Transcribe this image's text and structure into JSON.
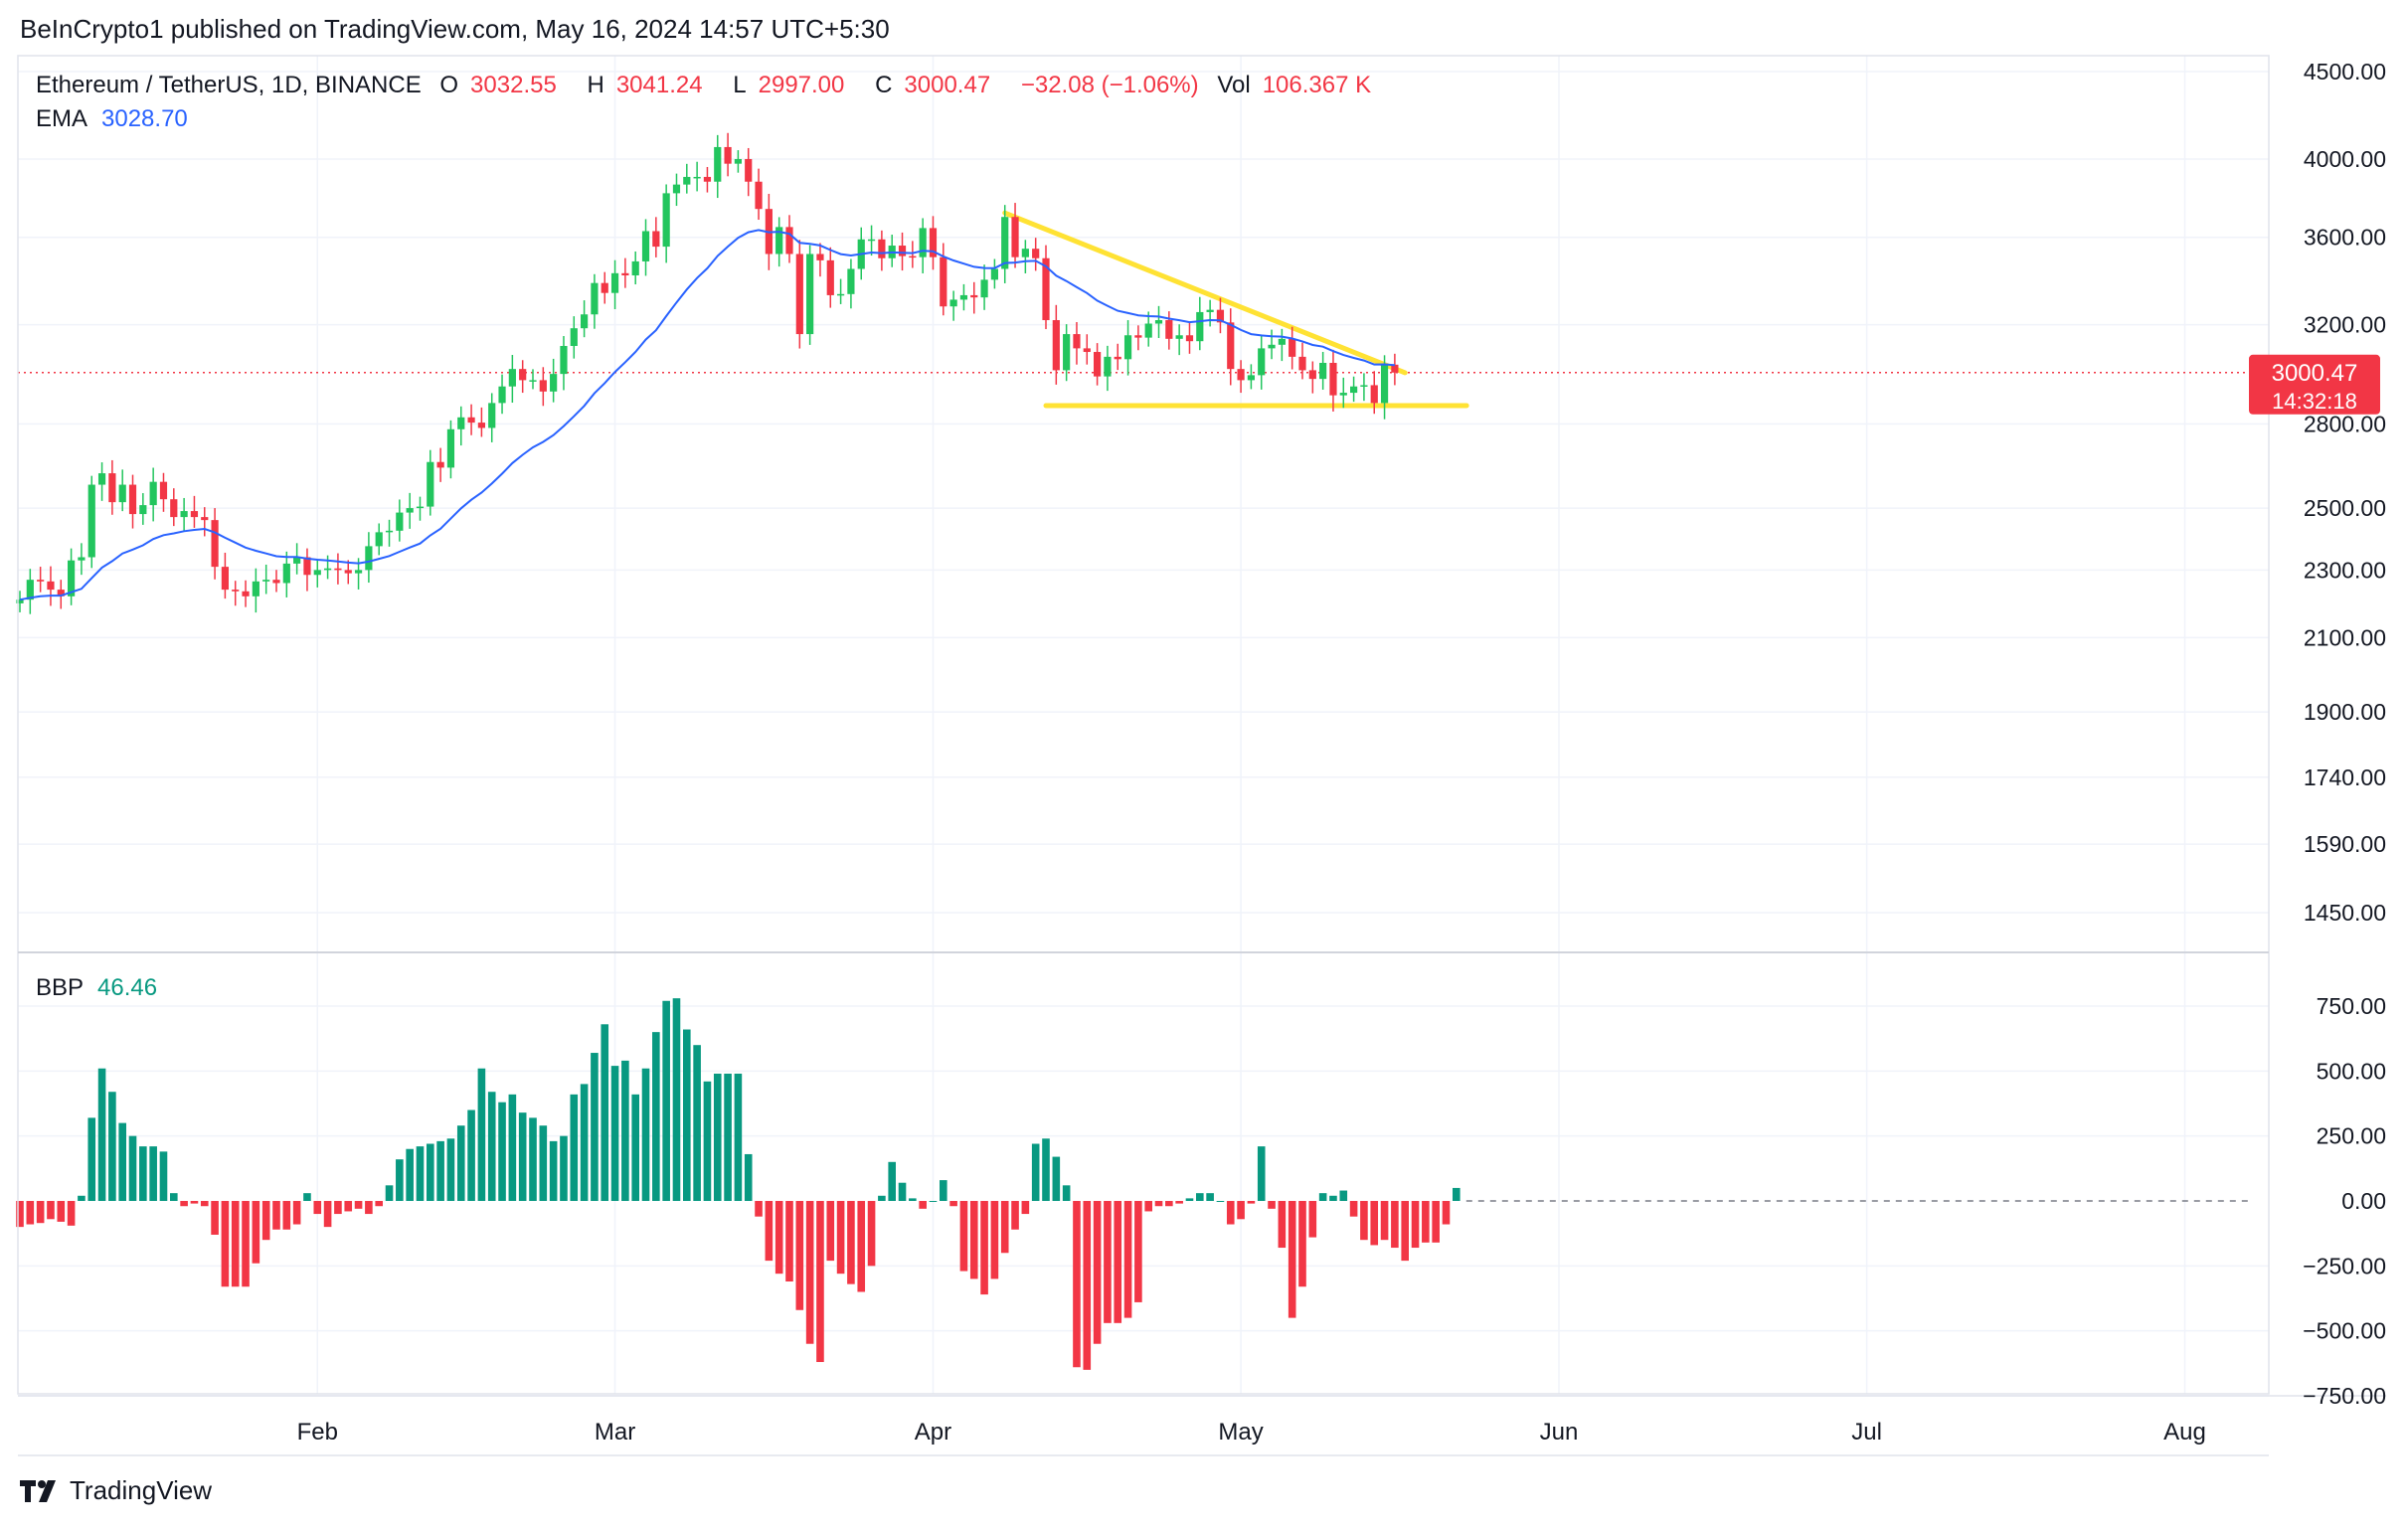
{
  "publisher": "BeInCrypto1 published on TradingView.com, May 16, 2024 14:57 UTC+5:30",
  "symbol": "Ethereum / TetherUS, 1D, BINANCE",
  "ohlc": {
    "o_label": "O",
    "o": "3032.55",
    "h_label": "H",
    "h": "3041.24",
    "l_label": "L",
    "l": "2997.00",
    "c_label": "C",
    "c": "3000.47",
    "change": "−32.08 (−1.06%)",
    "vol_label": "Vol",
    "vol": "106.367 K"
  },
  "ema": {
    "label": "EMA",
    "value": "3028.70"
  },
  "bbp": {
    "label": "BBP",
    "value": "46.46"
  },
  "price_tag": {
    "price": "3000.47",
    "countdown": "14:32:18"
  },
  "brand": "TradingView",
  "colors": {
    "up": "#22c55e",
    "down": "#f23645",
    "ema": "#2962ff",
    "bbp_up": "#089981",
    "bbp_down": "#f23645",
    "trend": "#ffe234",
    "grid": "#f0f3fa"
  },
  "chart_data": [
    {
      "type": "candlestick",
      "title": "Ethereum / TetherUS, 1D, BINANCE",
      "scale": "log",
      "ylim": [
        1350,
        4650
      ],
      "y_ticks": [
        "4500.00",
        "4000.00",
        "3600.00",
        "3200.00",
        "2800.00",
        "2500.00",
        "2300.00",
        "2100.00",
        "1900.00",
        "1740.00",
        "1590.00",
        "1450.00"
      ],
      "x_ticks": [
        "Feb",
        "Mar",
        "Apr",
        "May",
        "Jun",
        "Jul",
        "Aug"
      ],
      "x_range": [
        "2024-01-03",
        "2024-08-06"
      ],
      "close_series": [
        [
          "2024-01-03",
          2210
        ],
        [
          "2024-01-04",
          2270
        ],
        [
          "2024-01-05",
          2265
        ],
        [
          "2024-01-06",
          2240
        ],
        [
          "2024-01-07",
          2220
        ],
        [
          "2024-01-08",
          2330
        ],
        [
          "2024-01-09",
          2340
        ],
        [
          "2024-01-10",
          2580
        ],
        [
          "2024-01-11",
          2620
        ],
        [
          "2024-01-12",
          2520
        ],
        [
          "2024-01-13",
          2580
        ],
        [
          "2024-01-14",
          2480
        ],
        [
          "2024-01-15",
          2510
        ],
        [
          "2024-01-16",
          2590
        ],
        [
          "2024-01-17",
          2530
        ],
        [
          "2024-01-18",
          2470
        ],
        [
          "2024-01-19",
          2490
        ],
        [
          "2024-01-20",
          2470
        ],
        [
          "2024-01-21",
          2460
        ],
        [
          "2024-01-22",
          2310
        ],
        [
          "2024-01-23",
          2240
        ],
        [
          "2024-01-24",
          2235
        ],
        [
          "2024-01-25",
          2220
        ],
        [
          "2024-01-26",
          2265
        ],
        [
          "2024-01-27",
          2270
        ],
        [
          "2024-01-28",
          2260
        ],
        [
          "2024-01-29",
          2320
        ],
        [
          "2024-01-30",
          2340
        ],
        [
          "2024-01-31",
          2285
        ],
        [
          "2024-02-01",
          2300
        ],
        [
          "2024-02-02",
          2305
        ],
        [
          "2024-02-03",
          2300
        ],
        [
          "2024-02-04",
          2290
        ],
        [
          "2024-02-05",
          2300
        ],
        [
          "2024-02-06",
          2375
        ],
        [
          "2024-02-07",
          2420
        ],
        [
          "2024-02-08",
          2425
        ],
        [
          "2024-02-09",
          2485
        ],
        [
          "2024-02-10",
          2500
        ],
        [
          "2024-02-11",
          2505
        ],
        [
          "2024-02-12",
          2660
        ],
        [
          "2024-02-13",
          2640
        ],
        [
          "2024-02-14",
          2780
        ],
        [
          "2024-02-15",
          2825
        ],
        [
          "2024-02-16",
          2805
        ],
        [
          "2024-02-17",
          2785
        ],
        [
          "2024-02-18",
          2880
        ],
        [
          "2024-02-19",
          2945
        ],
        [
          "2024-02-20",
          3015
        ],
        [
          "2024-02-21",
          2970
        ],
        [
          "2024-02-22",
          2970
        ],
        [
          "2024-02-23",
          2925
        ],
        [
          "2024-02-24",
          2995
        ],
        [
          "2024-02-25",
          3110
        ],
        [
          "2024-02-26",
          3185
        ],
        [
          "2024-02-27",
          3245
        ],
        [
          "2024-02-28",
          3385
        ],
        [
          "2024-02-29",
          3340
        ],
        [
          "2024-03-01",
          3430
        ],
        [
          "2024-03-02",
          3420
        ],
        [
          "2024-03-03",
          3485
        ],
        [
          "2024-03-04",
          3630
        ],
        [
          "2024-03-05",
          3555
        ],
        [
          "2024-03-06",
          3820
        ],
        [
          "2024-03-07",
          3865
        ],
        [
          "2024-03-08",
          3905
        ],
        [
          "2024-03-09",
          3905
        ],
        [
          "2024-03-10",
          3880
        ],
        [
          "2024-03-11",
          4065
        ],
        [
          "2024-03-12",
          3975
        ],
        [
          "2024-03-13",
          4000
        ],
        [
          "2024-03-14",
          3880
        ],
        [
          "2024-03-15",
          3740
        ],
        [
          "2024-03-16",
          3520
        ],
        [
          "2024-03-17",
          3650
        ],
        [
          "2024-03-18",
          3520
        ],
        [
          "2024-03-19",
          3160
        ],
        [
          "2024-03-20",
          3520
        ],
        [
          "2024-03-21",
          3490
        ],
        [
          "2024-03-22",
          3330
        ],
        [
          "2024-03-23",
          3335
        ],
        [
          "2024-03-24",
          3450
        ],
        [
          "2024-03-25",
          3590
        ],
        [
          "2024-03-26",
          3590
        ],
        [
          "2024-03-27",
          3500
        ],
        [
          "2024-03-28",
          3560
        ],
        [
          "2024-03-29",
          3510
        ],
        [
          "2024-03-30",
          3505
        ],
        [
          "2024-03-31",
          3645
        ],
        [
          "2024-04-01",
          3505
        ],
        [
          "2024-04-02",
          3280
        ],
        [
          "2024-04-03",
          3310
        ],
        [
          "2024-04-04",
          3330
        ],
        [
          "2024-04-05",
          3320
        ],
        [
          "2024-04-06",
          3400
        ],
        [
          "2024-04-07",
          3450
        ],
        [
          "2024-04-08",
          3700
        ],
        [
          "2024-04-09",
          3505
        ],
        [
          "2024-04-10",
          3545
        ],
        [
          "2024-04-11",
          3500
        ],
        [
          "2024-04-12",
          3220
        ],
        [
          "2024-04-13",
          3010
        ],
        [
          "2024-04-14",
          3160
        ],
        [
          "2024-04-15",
          3100
        ],
        [
          "2024-04-16",
          3085
        ],
        [
          "2024-04-17",
          2985
        ],
        [
          "2024-04-18",
          3065
        ],
        [
          "2024-04-19",
          3055
        ],
        [
          "2024-04-20",
          3155
        ],
        [
          "2024-04-21",
          3145
        ],
        [
          "2024-04-22",
          3205
        ],
        [
          "2024-04-23",
          3220
        ],
        [
          "2024-04-24",
          3140
        ],
        [
          "2024-04-25",
          3155
        ],
        [
          "2024-04-26",
          3130
        ],
        [
          "2024-04-27",
          3255
        ],
        [
          "2024-04-28",
          3265
        ],
        [
          "2024-04-29",
          3210
        ],
        [
          "2024-04-30",
          3015
        ],
        [
          "2024-05-01",
          2970
        ],
        [
          "2024-05-02",
          2990
        ],
        [
          "2024-05-03",
          3100
        ],
        [
          "2024-05-04",
          3115
        ],
        [
          "2024-05-05",
          3140
        ],
        [
          "2024-05-06",
          3065
        ],
        [
          "2024-05-07",
          3010
        ],
        [
          "2024-05-08",
          2975
        ],
        [
          "2024-05-09",
          3040
        ],
        [
          "2024-05-10",
          2910
        ],
        [
          "2024-05-11",
          2920
        ],
        [
          "2024-05-12",
          2945
        ],
        [
          "2024-05-13",
          2950
        ],
        [
          "2024-05-14",
          2880
        ],
        [
          "2024-05-15",
          3035
        ],
        [
          "2024-05-16",
          3000.47
        ]
      ],
      "ema": {
        "name": "EMA",
        "last": 3028.7
      },
      "last_price": 3000.47,
      "trendlines": [
        {
          "from": [
            "2024-04-08",
            3720
          ],
          "to": [
            "2024-05-17",
            3000
          ]
        },
        {
          "from": [
            "2024-04-12",
            2870
          ],
          "to": [
            "2024-05-23",
            2870
          ]
        }
      ]
    },
    {
      "type": "bar",
      "title": "BBP",
      "ylim": [
        -760,
        880
      ],
      "y_ticks": [
        "750.00",
        "500.00",
        "250.00",
        "0.00",
        "−250.00",
        "−500.00",
        "−750.00"
      ],
      "values": [
        -100,
        -90,
        -85,
        -70,
        -80,
        -95,
        20,
        320,
        510,
        420,
        300,
        250,
        210,
        210,
        190,
        30,
        -20,
        -10,
        -20,
        -130,
        -330,
        -330,
        -330,
        -240,
        -150,
        -110,
        -110,
        -90,
        30,
        -50,
        -100,
        -50,
        -40,
        -30,
        -50,
        -20,
        60,
        160,
        200,
        210,
        220,
        230,
        240,
        290,
        350,
        510,
        420,
        380,
        410,
        340,
        320,
        290,
        230,
        250,
        410,
        450,
        570,
        680,
        520,
        540,
        410,
        510,
        650,
        770,
        780,
        660,
        600,
        460,
        490,
        490,
        490,
        180,
        -60,
        -230,
        -280,
        -310,
        -420,
        -550,
        -620,
        -230,
        -280,
        -320,
        -350,
        -250,
        20,
        150,
        70,
        10,
        -30,
        0,
        80,
        -20,
        -270,
        -300,
        -360,
        -300,
        -200,
        -110,
        -50,
        220,
        240,
        170,
        60,
        -640,
        -650,
        -550,
        -470,
        -470,
        -450,
        -390,
        -40,
        -20,
        -20,
        -10,
        10,
        30,
        30,
        0,
        -90,
        -70,
        -10,
        210,
        -30,
        -180,
        -450,
        -330,
        -140,
        30,
        20,
        40,
        -60,
        -150,
        -170,
        -150,
        -180,
        -230,
        -180,
        -160,
        -160,
        -90,
        50
      ]
    }
  ]
}
